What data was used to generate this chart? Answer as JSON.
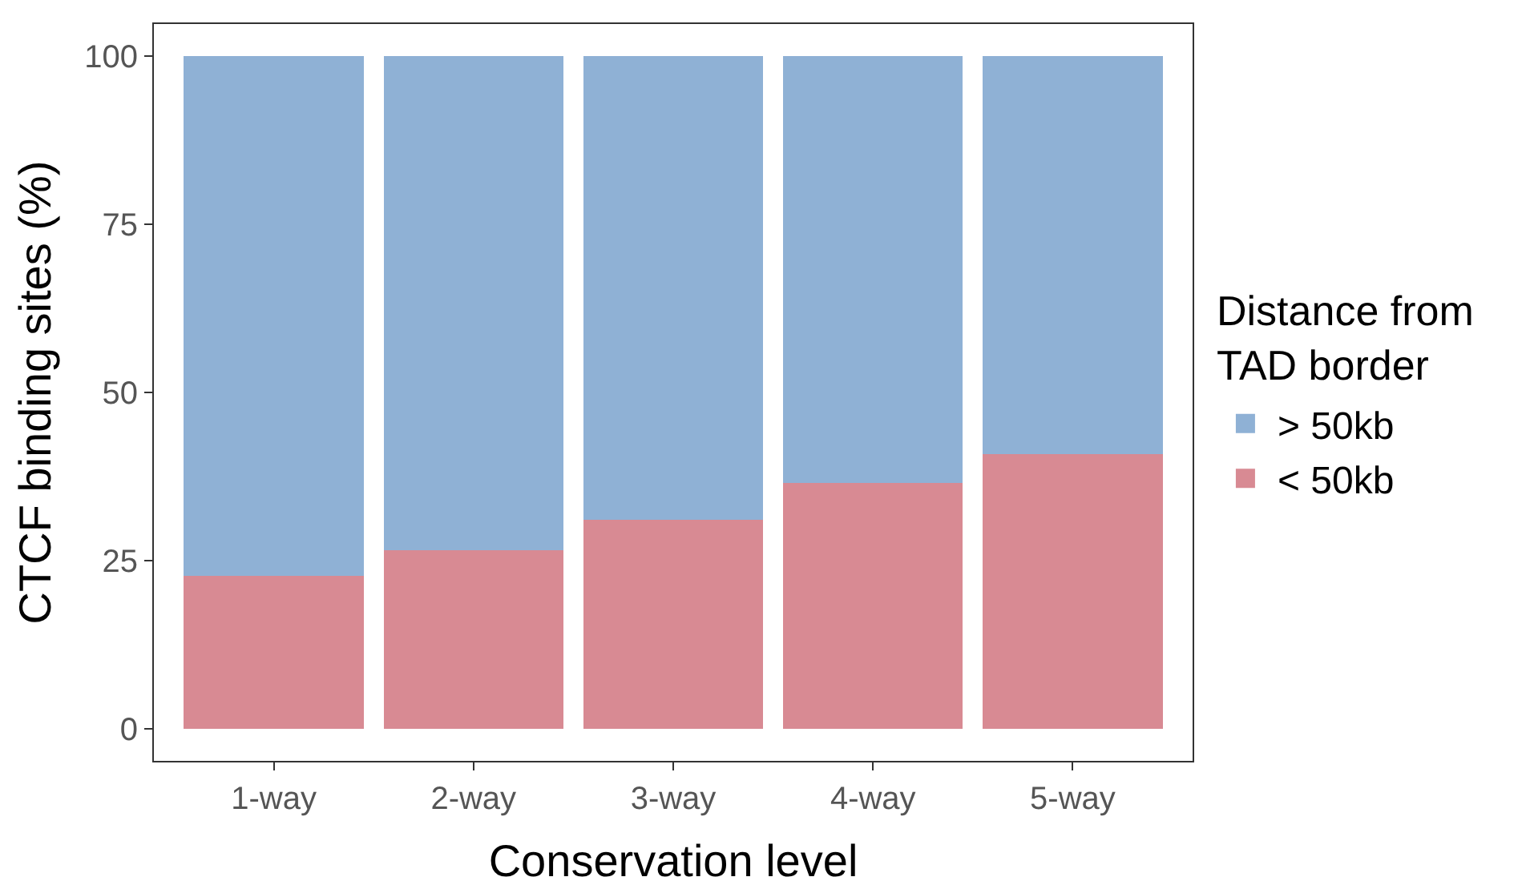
{
  "chart_data": {
    "type": "bar",
    "stacked": true,
    "xlabel": "Conservation level",
    "ylabel": "CTCF binding sites (%)",
    "legend_title": "Distance from\nTAD border",
    "categories": [
      "1-way",
      "2-way",
      "3-way",
      "4-way",
      "5-way"
    ],
    "series": [
      {
        "name": "< 50kb",
        "color": "#d88a93",
        "values": [
          22.7,
          26.5,
          31.1,
          36.5,
          40.8
        ]
      },
      {
        "name": "> 50kb",
        "color": "#8fb1d5",
        "values": [
          77.3,
          73.5,
          68.9,
          63.5,
          59.2
        ]
      }
    ],
    "ylim": [
      -4.8,
      104.8
    ],
    "yticks": [
      0,
      25,
      50,
      75,
      100
    ],
    "grid": false,
    "legend": "right"
  }
}
